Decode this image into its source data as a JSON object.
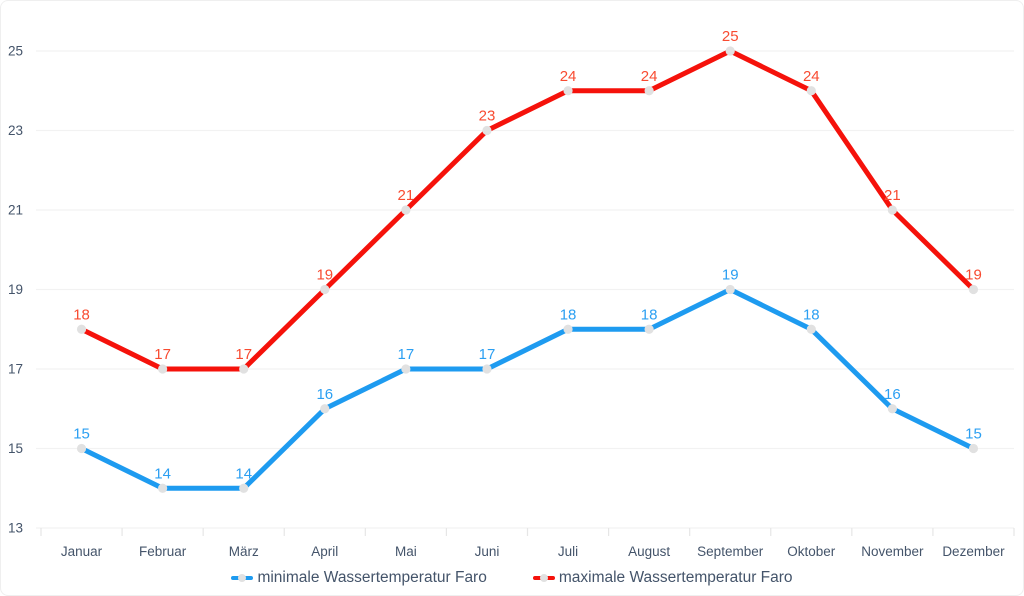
{
  "chart_data": {
    "type": "line",
    "title": "",
    "xlabel": "",
    "ylabel": "",
    "categories": [
      "Januar",
      "Februar",
      "März",
      "April",
      "Mai",
      "Juni",
      "Juli",
      "August",
      "September",
      "Oktober",
      "November",
      "Dezember"
    ],
    "series": [
      {
        "name": "minimale Wassertemperatur Faro",
        "values": [
          15,
          14,
          14,
          16,
          17,
          17,
          18,
          18,
          19,
          18,
          16,
          15
        ],
        "color": "#1E9BF0",
        "label_color": "#2B9FF2"
      },
      {
        "name": "maximale Wassertemperatur Faro",
        "values": [
          18,
          17,
          17,
          19,
          21,
          23,
          24,
          24,
          25,
          24,
          21,
          19
        ],
        "color": "#F5120B",
        "label_color": "#F84B31"
      }
    ],
    "y_ticks": [
      13,
      15,
      17,
      19,
      21,
      23,
      25
    ],
    "ylim": [
      13,
      25
    ],
    "grid": true,
    "legend_position": "bottom",
    "data_labels": true,
    "marker_color": "#E1E1E1",
    "axis_text_color": "#44546A",
    "gridline_color": "#F2F2F2",
    "tick_color": "#E6E6E6"
  }
}
